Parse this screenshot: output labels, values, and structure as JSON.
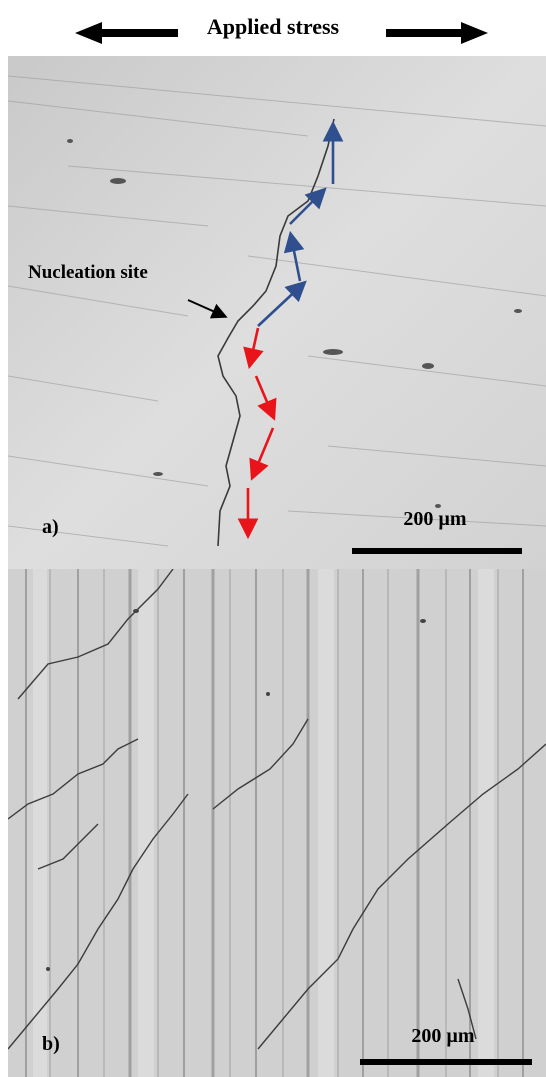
{
  "header": {
    "title": "Applied stress"
  },
  "panel_a": {
    "label": "a)",
    "annotation": "Nucleation site",
    "scale_text": "200 µm"
  },
  "panel_b": {
    "label": "b)",
    "scale_text": "200 µm"
  },
  "colors": {
    "blue_arrows": "#2f4f8f",
    "red_arrows": "#e8141a",
    "black": "#000000"
  }
}
